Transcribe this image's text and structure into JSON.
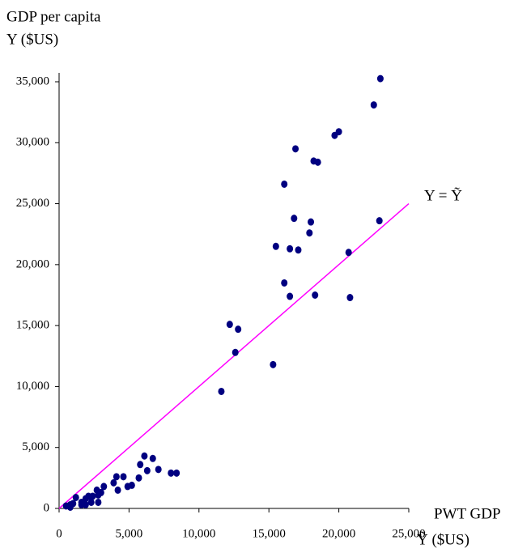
{
  "chart_data": {
    "type": "scatter",
    "ylabel": [
      "GDP per capita",
      "Y ($US)"
    ],
    "xlabel": [
      "PWT GDP",
      "Ỹ ($US)"
    ],
    "color": "#000080",
    "x": [
      22970,
      22500,
      20000,
      19700,
      16900,
      18200,
      18500,
      16100,
      22900,
      16800,
      18000,
      17900,
      15500,
      16500,
      17100,
      20700,
      16100,
      16500,
      18300,
      20800,
      12200,
      12800,
      12600,
      15300,
      11600,
      6100,
      6700,
      5800,
      7100,
      6300,
      8000,
      8400,
      5700,
      4600,
      4100,
      4200,
      3900,
      5200,
      4900,
      3200,
      2700,
      2800,
      2400,
      2100,
      1900,
      2800,
      2300,
      1600,
      1200,
      1600,
      800,
      800,
      500,
      1000,
      1900,
      3000
    ],
    "values": [
      35260,
      33100,
      30900,
      30600,
      29500,
      28500,
      28400,
      26600,
      23600,
      23800,
      23500,
      22600,
      21500,
      21300,
      21200,
      21000,
      18500,
      17400,
      17500,
      17300,
      15100,
      14700,
      12800,
      11800,
      9600,
      4300,
      4100,
      3600,
      3200,
      3100,
      2900,
      2900,
      2500,
      2600,
      2600,
      1500,
      2100,
      1900,
      1800,
      1800,
      1500,
      1100,
      1000,
      1000,
      800,
      500,
      500,
      500,
      900,
      300,
      300,
      100,
      200,
      400,
      300,
      1300
    ],
    "reference_line": {
      "x": [
        0,
        25000
      ],
      "y": [
        0,
        25000
      ],
      "color": "#ff00ff",
      "label": "Y = Ỹ"
    },
    "xlim": [
      0,
      25000
    ],
    "ylim": [
      0,
      35000
    ],
    "xticks": [
      0,
      {
        "value": 5000,
        "label": "5,000"
      },
      {
        "value": 10000,
        "label": "10,000"
      },
      {
        "value": 15000,
        "label": "15,000"
      },
      {
        "value": 20000,
        "label": "20,000"
      },
      {
        "value": 25000,
        "label": "25,000"
      }
    ],
    "yticks": [
      0,
      {
        "value": 5000,
        "label": "5,000"
      },
      {
        "value": 10000,
        "label": "10,000"
      },
      {
        "value": 15000,
        "label": "15,000"
      },
      {
        "value": 20000,
        "label": "20,000"
      },
      {
        "value": 25000,
        "label": "25,000"
      },
      {
        "value": 30000,
        "label": "30,000"
      },
      {
        "value": 35000,
        "label": "35,000"
      }
    ]
  }
}
